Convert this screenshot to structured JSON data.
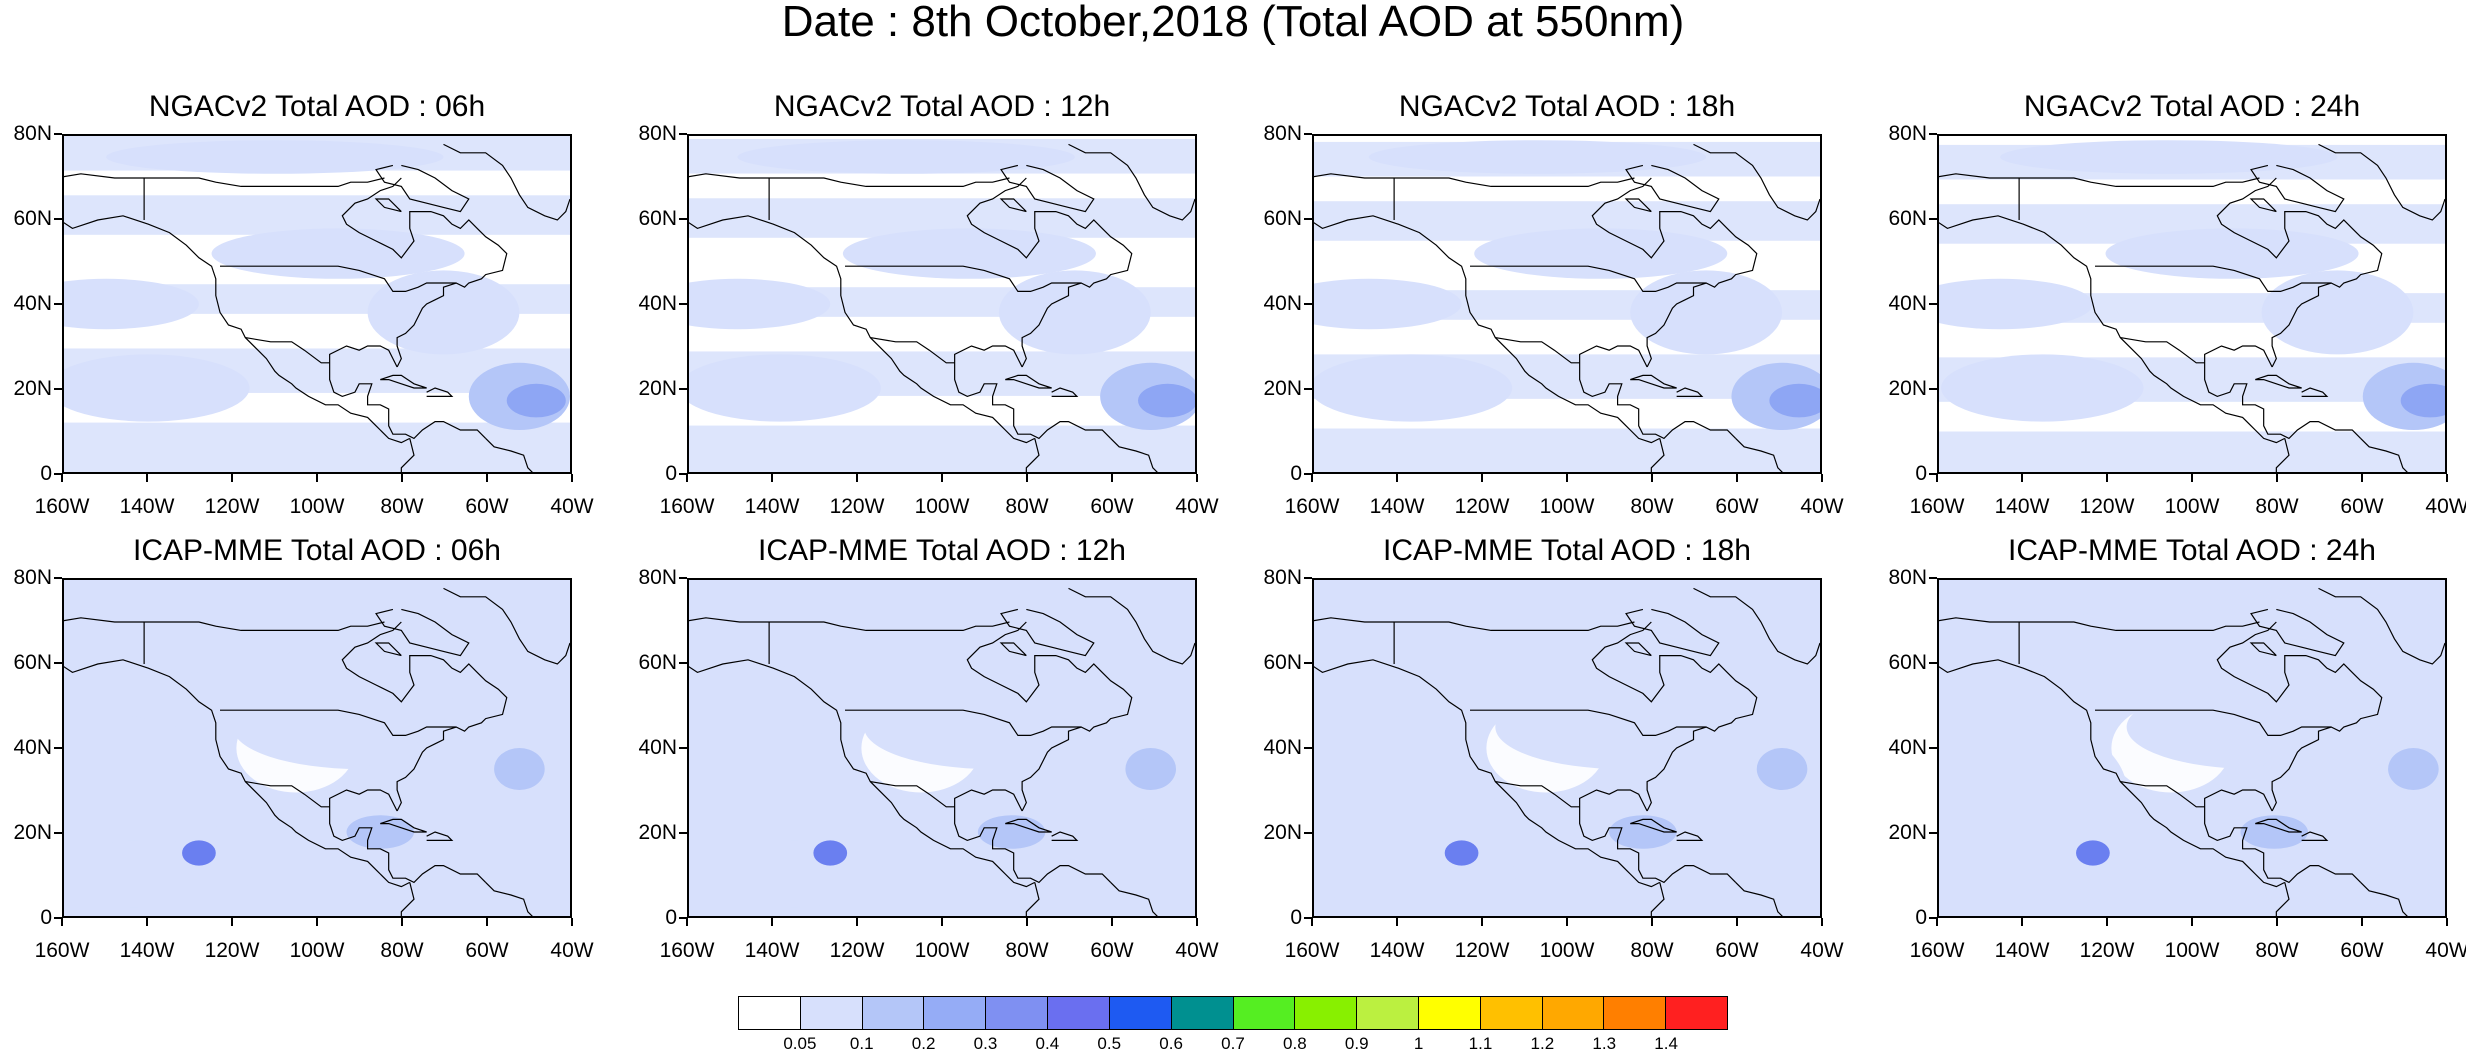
{
  "title": "Date : 8th October,2018 (Total AOD at 550nm)",
  "rows": [
    {
      "model": "NGACv2",
      "panels": [
        {
          "title": "NGACv2 Total AOD : 06h",
          "hour": "06h"
        },
        {
          "title": "NGACv2 Total AOD : 12h",
          "hour": "12h"
        },
        {
          "title": "NGACv2 Total AOD : 18h",
          "hour": "18h"
        },
        {
          "title": "NGACv2 Total AOD : 24h",
          "hour": "24h"
        }
      ]
    },
    {
      "model": "ICAP-MME",
      "panels": [
        {
          "title": "ICAP-MME Total AOD : 06h",
          "hour": "06h"
        },
        {
          "title": "ICAP-MME Total AOD : 12h",
          "hour": "12h"
        },
        {
          "title": "ICAP-MME Total AOD : 18h",
          "hour": "18h"
        },
        {
          "title": "ICAP-MME Total AOD : 24h",
          "hour": "24h"
        }
      ]
    }
  ],
  "map_extent": {
    "lon": [
      -160,
      -40
    ],
    "lat": [
      0,
      80
    ]
  },
  "lat_ticks": [
    "80N",
    "60N",
    "40N",
    "20N",
    "0"
  ],
  "lon_ticks": [
    "160W",
    "140W",
    "120W",
    "100W",
    "80W",
    "60W",
    "40W"
  ],
  "colorbar": {
    "labels": [
      "0.05",
      "0.1",
      "0.2",
      "0.3",
      "0.4",
      "0.5",
      "0.6",
      "0.7",
      "0.8",
      "0.9",
      "1",
      "1.1",
      "1.2",
      "1.3",
      "1.4"
    ],
    "colors": [
      "#ffffff",
      "#d7e0fc",
      "#b4c6f8",
      "#95acf6",
      "#7f90f2",
      "#6a6ff0",
      "#1e5af2",
      "#009090",
      "#55ee22",
      "#88f000",
      "#bbf040",
      "#ffff00",
      "#ffc000",
      "#ffa800",
      "#ff7f00",
      "#ff2020"
    ]
  },
  "map_colors": {
    "background": "#ffffff",
    "low": "#d7e0fc",
    "mid": "#b4c6f8",
    "high": "#8ea6f4",
    "peak": "#6a7ff0",
    "coast": "#000000"
  }
}
